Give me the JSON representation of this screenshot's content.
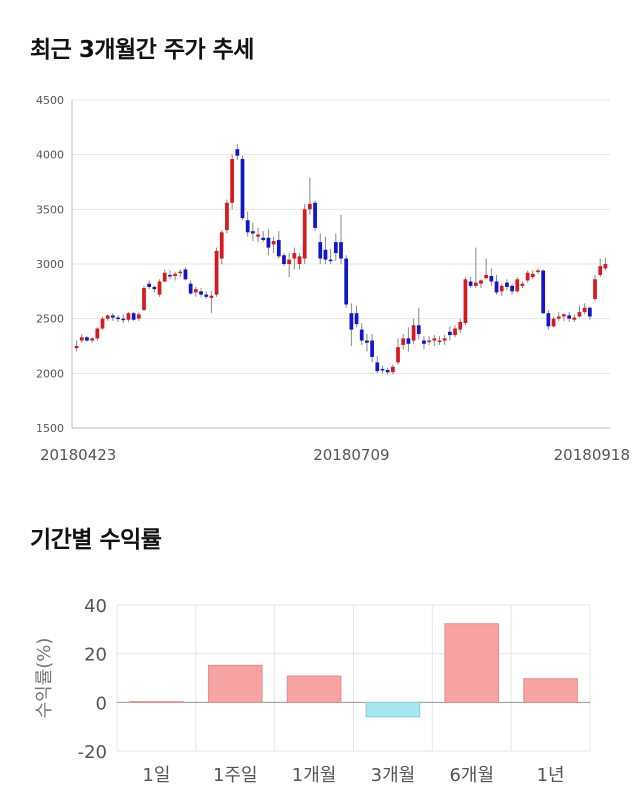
{
  "sections": {
    "price_title": "최근 3개월간 주가 추세",
    "returns_title": "기간별 수익률"
  },
  "colors": {
    "up": "#d71920",
    "down": "#1414c8",
    "positive_bar": "#f7a3a3",
    "negative_bar": "#a6e6f0",
    "grid": "#e6e6e6",
    "axis": "#bbbbbb"
  },
  "chart_data": [
    {
      "type": "candlestick",
      "title": "최근 3개월간 주가 추세",
      "ylim": [
        1500,
        4500
      ],
      "yticks": [
        1500,
        2000,
        2500,
        3000,
        3500,
        4000,
        4500
      ],
      "xtick_labels": [
        {
          "label": "20180423",
          "index": 0
        },
        {
          "label": "20180709",
          "index": 53
        },
        {
          "label": "20180918",
          "index": 106
        }
      ],
      "grid": true,
      "candles": [
        [
          2230,
          2300,
          2200,
          2250
        ],
        [
          2300,
          2360,
          2280,
          2330
        ],
        [
          2330,
          2340,
          2290,
          2300
        ],
        [
          2300,
          2330,
          2280,
          2320
        ],
        [
          2320,
          2420,
          2300,
          2410
        ],
        [
          2410,
          2520,
          2400,
          2500
        ],
        [
          2500,
          2540,
          2480,
          2530
        ],
        [
          2530,
          2550,
          2480,
          2510
        ],
        [
          2510,
          2530,
          2470,
          2500
        ],
        [
          2500,
          2540,
          2460,
          2490
        ],
        [
          2490,
          2560,
          2470,
          2550
        ],
        [
          2550,
          2560,
          2480,
          2490
        ],
        [
          2500,
          2560,
          2480,
          2540
        ],
        [
          2580,
          2800,
          2570,
          2780
        ],
        [
          2820,
          2850,
          2770,
          2790
        ],
        [
          2790,
          2800,
          2740,
          2770
        ],
        [
          2720,
          2860,
          2700,
          2840
        ],
        [
          2840,
          2950,
          2830,
          2920
        ],
        [
          2900,
          2940,
          2860,
          2890
        ],
        [
          2890,
          2930,
          2850,
          2910
        ],
        [
          2920,
          2950,
          2880,
          2930
        ],
        [
          2950,
          2970,
          2850,
          2860
        ],
        [
          2820,
          2850,
          2720,
          2730
        ],
        [
          2740,
          2790,
          2700,
          2770
        ],
        [
          2750,
          2780,
          2700,
          2720
        ],
        [
          2720,
          2750,
          2680,
          2700
        ],
        [
          2690,
          2750,
          2550,
          2710
        ],
        [
          2720,
          3150,
          2700,
          3120
        ],
        [
          3050,
          3310,
          3000,
          3290
        ],
        [
          3310,
          3590,
          3280,
          3560
        ],
        [
          3560,
          4000,
          3500,
          3960
        ],
        [
          4050,
          4100,
          3950,
          3990
        ],
        [
          3960,
          3990,
          3400,
          3420
        ],
        [
          3400,
          3480,
          3250,
          3290
        ],
        [
          3300,
          3380,
          3210,
          3280
        ],
        [
          3250,
          3330,
          3200,
          3270
        ],
        [
          3240,
          3300,
          3200,
          3220
        ],
        [
          3240,
          3320,
          3080,
          3150
        ],
        [
          3180,
          3250,
          3100,
          3210
        ],
        [
          3220,
          3300,
          3050,
          3070
        ],
        [
          3080,
          3100,
          2980,
          3000
        ],
        [
          3000,
          3100,
          2880,
          3040
        ],
        [
          3050,
          3150,
          2950,
          3100
        ],
        [
          3000,
          3100,
          2950,
          3070
        ],
        [
          3050,
          3550,
          3000,
          3500
        ],
        [
          3500,
          3790,
          3450,
          3550
        ],
        [
          3560,
          3580,
          3300,
          3330
        ],
        [
          3200,
          3280,
          3000,
          3050
        ],
        [
          3130,
          3250,
          3000,
          3040
        ],
        [
          3040,
          3140,
          3000,
          3030
        ],
        [
          3200,
          3280,
          3030,
          3100
        ],
        [
          3200,
          3450,
          3000,
          3050
        ],
        [
          3050,
          3080,
          2600,
          2630
        ],
        [
          2550,
          2640,
          2250,
          2400
        ],
        [
          2550,
          2620,
          2420,
          2450
        ],
        [
          2400,
          2460,
          2260,
          2300
        ],
        [
          2300,
          2360,
          2200,
          2280
        ],
        [
          2300,
          2360,
          2100,
          2150
        ],
        [
          2100,
          2160,
          2000,
          2020
        ],
        [
          2040,
          2070,
          2000,
          2030
        ],
        [
          2030,
          2050,
          1990,
          2010
        ],
        [
          2010,
          2080,
          1990,
          2060
        ],
        [
          2100,
          2320,
          2080,
          2240
        ],
        [
          2260,
          2360,
          2220,
          2320
        ],
        [
          2320,
          2420,
          2200,
          2270
        ],
        [
          2300,
          2500,
          2270,
          2440
        ],
        [
          2440,
          2600,
          2310,
          2360
        ],
        [
          2300,
          2340,
          2220,
          2270
        ],
        [
          2290,
          2340,
          2260,
          2300
        ],
        [
          2300,
          2350,
          2250,
          2320
        ],
        [
          2290,
          2340,
          2260,
          2300
        ],
        [
          2300,
          2350,
          2260,
          2320
        ],
        [
          2380,
          2430,
          2300,
          2350
        ],
        [
          2350,
          2440,
          2330,
          2410
        ],
        [
          2400,
          2500,
          2370,
          2470
        ],
        [
          2460,
          2880,
          2440,
          2860
        ],
        [
          2840,
          2880,
          2780,
          2800
        ],
        [
          2800,
          3150,
          2780,
          2830
        ],
        [
          2820,
          2860,
          2780,
          2850
        ],
        [
          2870,
          3050,
          2860,
          2900
        ],
        [
          2890,
          2960,
          2800,
          2840
        ],
        [
          2840,
          2900,
          2720,
          2740
        ],
        [
          2750,
          2820,
          2710,
          2800
        ],
        [
          2830,
          2860,
          2760,
          2790
        ],
        [
          2800,
          2820,
          2720,
          2750
        ],
        [
          2750,
          2880,
          2740,
          2860
        ],
        [
          2800,
          2840,
          2780,
          2820
        ],
        [
          2850,
          2940,
          2830,
          2920
        ],
        [
          2880,
          2940,
          2860,
          2910
        ],
        [
          2940,
          2960,
          2910,
          2940
        ],
        [
          2940,
          2950,
          2540,
          2550
        ],
        [
          2550,
          2580,
          2400,
          2430
        ],
        [
          2430,
          2520,
          2420,
          2500
        ],
        [
          2500,
          2560,
          2480,
          2520
        ],
        [
          2520,
          2550,
          2480,
          2540
        ],
        [
          2530,
          2560,
          2470,
          2500
        ],
        [
          2490,
          2540,
          2470,
          2510
        ],
        [
          2520,
          2620,
          2510,
          2560
        ],
        [
          2560,
          2640,
          2540,
          2600
        ],
        [
          2600,
          2610,
          2490,
          2520
        ],
        [
          2680,
          2900,
          2660,
          2860
        ],
        [
          2900,
          3050,
          2880,
          2980
        ],
        [
          2960,
          3060,
          2940,
          3000
        ]
      ]
    },
    {
      "type": "bar",
      "title": "기간별 수익률",
      "ylabel": "수익률(%)",
      "ylim": [
        -20,
        40
      ],
      "yticks": [
        -20,
        0,
        20,
        40
      ],
      "categories": [
        "1일",
        "1주일",
        "1개월",
        "3개월",
        "6개월",
        "1년"
      ],
      "values": [
        0.3,
        15.2,
        10.8,
        -6.0,
        32.3,
        9.7
      ],
      "grid": true
    }
  ]
}
